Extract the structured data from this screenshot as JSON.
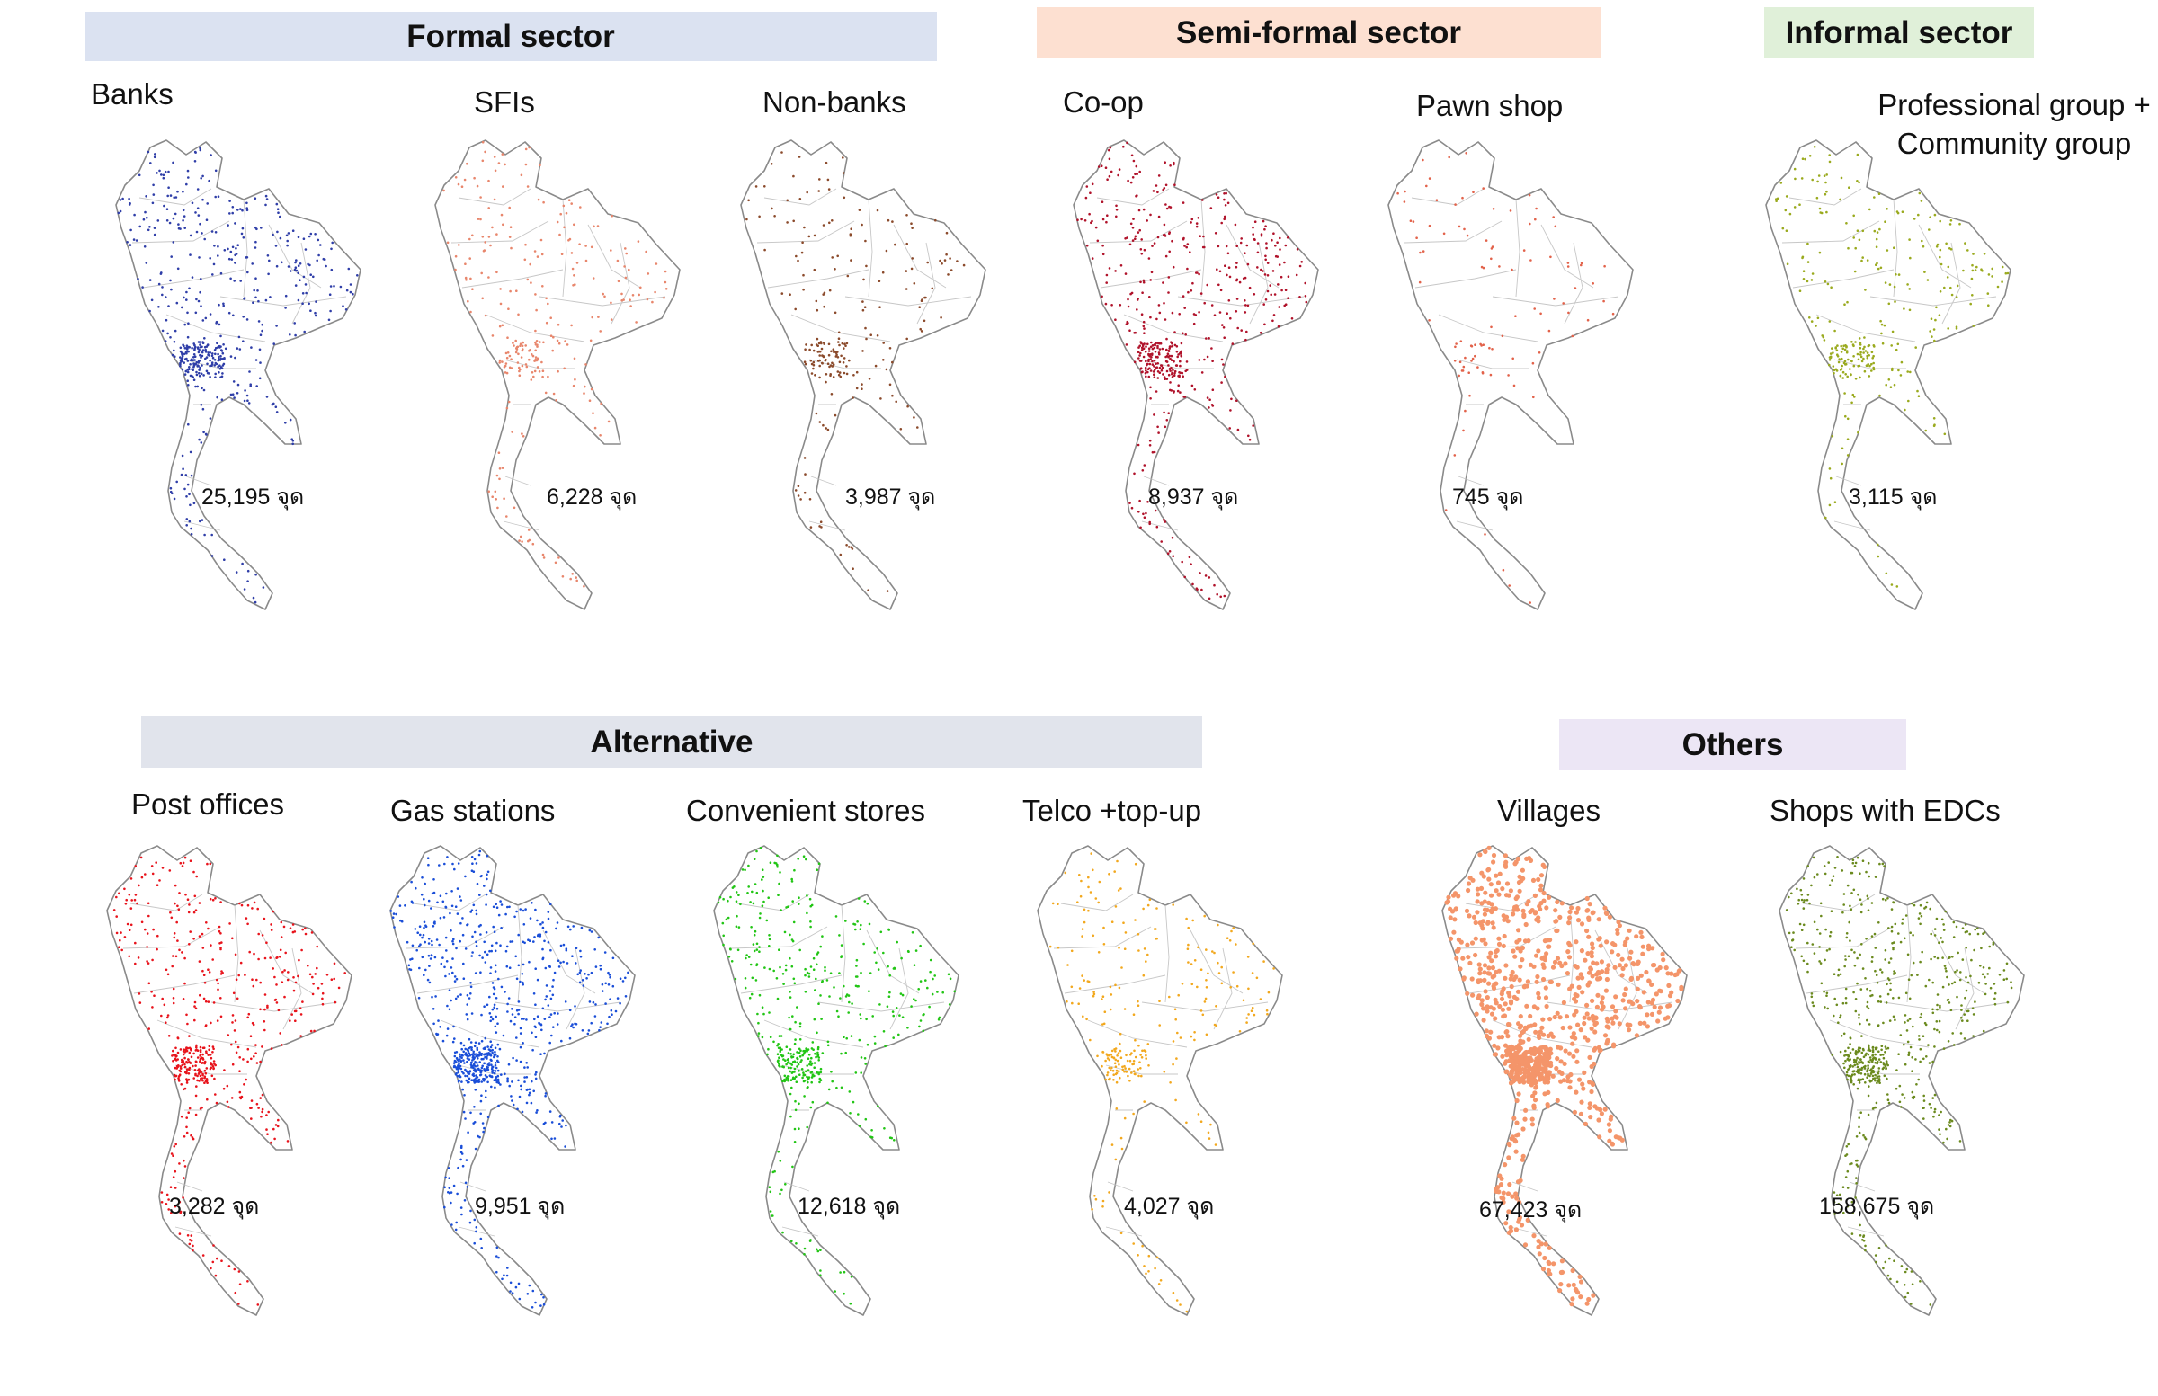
{
  "sectors": [
    {
      "key": "formal",
      "label": "Formal sector",
      "color": "#dbe2f1"
    },
    {
      "key": "semiformal",
      "label": "Semi-formal sector",
      "color": "#fde0d1"
    },
    {
      "key": "informal",
      "label": "Informal sector",
      "color": "#e0f0d9"
    },
    {
      "key": "alternative",
      "label": "Alternative",
      "color": "#e1e4ec"
    },
    {
      "key": "others",
      "label": "Others",
      "color": "#ece6f5"
    }
  ],
  "maps": [
    {
      "key": "banks",
      "title": "Banks",
      "count": "25,195 จุด",
      "dot_color": "#2f3ea8",
      "density": 0.55
    },
    {
      "key": "sfis",
      "title": "SFIs",
      "count": "6,228 จุด",
      "dot_color": "#e8866c",
      "density": 0.25
    },
    {
      "key": "nonbanks",
      "title": "Non-banks",
      "count": "3,987 จุด",
      "dot_color": "#8b4a2b",
      "density": 0.2
    },
    {
      "key": "coop",
      "title": "Co-op",
      "count": "8,937 จุด",
      "dot_color": "#b0122a",
      "density": 0.55
    },
    {
      "key": "pawnshop",
      "title": "Pawn shop",
      "count": "745 จุด",
      "dot_color": "#e2624a",
      "density": 0.05
    },
    {
      "key": "professional",
      "title_lines": [
        "Professional group +",
        "Community group"
      ],
      "count": "3,115 จุด",
      "dot_color": "#9aaa1e",
      "density": 0.3
    },
    {
      "key": "post",
      "title": "Post offices",
      "count": "3,282 จุด",
      "dot_color": "#e8141c",
      "density": 0.55
    },
    {
      "key": "gas",
      "title": "Gas stations",
      "count": "9,951 จุด",
      "dot_color": "#1a4ed8",
      "density": 0.85
    },
    {
      "key": "convenient",
      "title": "Convenient stores",
      "count": "12,618 จุด",
      "dot_color": "#22c515",
      "density": 0.5
    },
    {
      "key": "telco",
      "title": "Telco +top-up",
      "count": "4,027 จุด",
      "dot_color": "#f2a81e",
      "density": 0.25
    },
    {
      "key": "villages",
      "title": "Villages",
      "count": "67,423 จุด",
      "dot_color": "#f4956a",
      "density": 1.0
    },
    {
      "key": "edc",
      "title": "Shops with EDCs",
      "count": "158,675 จุด",
      "dot_color": "#6b8a1e",
      "density": 0.7
    }
  ]
}
